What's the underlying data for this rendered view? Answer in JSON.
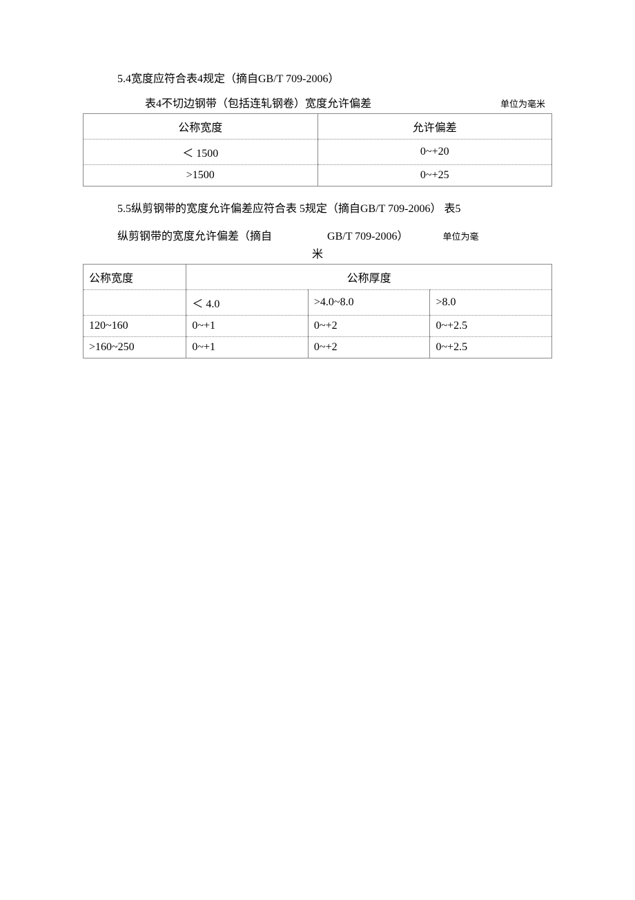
{
  "section54": {
    "intro": "5.4宽度应符合表4规定（摘自GB/T 709-2006）"
  },
  "table4": {
    "caption": "表4不切边钢带（包括连轧钢卷）宽度允许偏差",
    "unit": "单位为毫米",
    "columns": [
      "公称宽度",
      "允许偏差"
    ],
    "rows": [
      [
        "＜ 1500",
        "0~+20"
      ],
      [
        ">1500",
        "0~+25"
      ]
    ]
  },
  "section55": {
    "intro": "5.5纵剪钢带的宽度允许偏差应符合表 5规定（摘自GB/T 709-2006）  表5"
  },
  "table5": {
    "caption_main": "纵剪钢带的宽度允许偏差（摘自",
    "caption_gb": "GB/T 709-2006）",
    "caption_unit": "单位为毫",
    "caption_mi": "米",
    "header_col1": "公称宽度",
    "header_colspan": "公称厚度",
    "subheaders": [
      "＜ 4.0",
      ">4.0~8.0",
      ">8.0"
    ],
    "rows": [
      [
        "120~160",
        "0~+1",
        "0~+2",
        "0~+2.5"
      ],
      [
        ">160~250",
        "0~+1",
        "0~+2",
        "0~+2.5"
      ]
    ]
  }
}
